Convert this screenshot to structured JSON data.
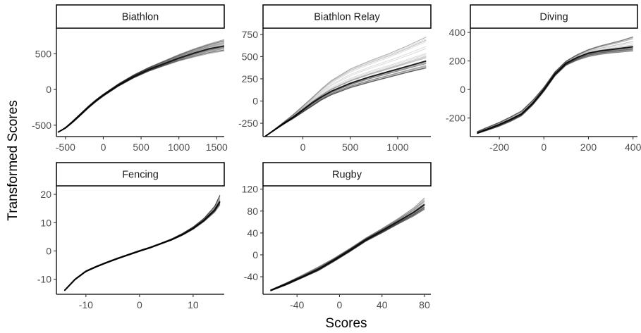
{
  "figure": {
    "xlabel": "Scores",
    "ylabel": "Transformed Scores",
    "line_color": "#000000",
    "panel_count": 5,
    "grid": false
  },
  "chart_data": [
    {
      "type": "line",
      "title": "Biathlon",
      "xlim": [
        -620,
        1600
      ],
      "ylim": [
        -660,
        860
      ],
      "xticks": [
        -500,
        0,
        500,
        1000,
        1500
      ],
      "xtick_labels": [
        "-500",
        "0",
        "500",
        "1000",
        "1500"
      ],
      "yticks": [
        -500,
        0,
        500
      ],
      "ytick_labels": [
        "-500",
        "0",
        "500"
      ],
      "x": [
        -600,
        -500,
        -400,
        -300,
        -200,
        -100,
        0,
        200,
        400,
        600,
        800,
        1000,
        1200,
        1400,
        1600
      ],
      "series": [
        {
          "values": [
            -600,
            -540,
            -450,
            -350,
            -250,
            -160,
            -80,
            60,
            180,
            280,
            360,
            440,
            510,
            570,
            610
          ]
        },
        {
          "values": [
            -600,
            -530,
            -435,
            -335,
            -235,
            -145,
            -65,
            80,
            205,
            310,
            400,
            490,
            570,
            640,
            700
          ]
        },
        {
          "values": [
            -600,
            -545,
            -460,
            -365,
            -265,
            -175,
            -95,
            45,
            160,
            255,
            330,
            400,
            455,
            505,
            540
          ]
        }
      ],
      "spread": 90
    },
    {
      "type": "line",
      "title": "Biathlon Relay",
      "xlim": [
        -420,
        1350
      ],
      "ylim": [
        -400,
        820
      ],
      "xticks": [
        0,
        500,
        1000
      ],
      "xtick_labels": [
        "0",
        "500",
        "1000"
      ],
      "yticks": [
        -250,
        0,
        250,
        500,
        750
      ],
      "ytick_labels": [
        "-250",
        "0",
        "250",
        "500",
        "750"
      ],
      "x": [
        -400,
        -300,
        -200,
        -100,
        0,
        100,
        200,
        300,
        500,
        700,
        900,
        1100,
        1300
      ],
      "series": [
        {
          "values": [
            -400,
            -325,
            -250,
            -180,
            -100,
            -20,
            50,
            110,
            200,
            270,
            330,
            390,
            450
          ]
        },
        {
          "values": [
            -400,
            -320,
            -235,
            -150,
            -55,
            40,
            140,
            230,
            360,
            450,
            530,
            620,
            720
          ]
        },
        {
          "values": [
            -400,
            -330,
            -260,
            -195,
            -125,
            -55,
            15,
            70,
            150,
            210,
            265,
            320,
            370
          ]
        }
      ],
      "spread": 140
    },
    {
      "type": "line",
      "title": "Diving",
      "xlim": [
        -330,
        420
      ],
      "ylim": [
        -330,
        430
      ],
      "xticks": [
        -200,
        0,
        200,
        400
      ],
      "xtick_labels": [
        "-200",
        "0",
        "200",
        "400"
      ],
      "yticks": [
        -200,
        0,
        200,
        400
      ],
      "ytick_labels": [
        "-200",
        "0",
        "200",
        "400"
      ],
      "x": [
        -300,
        -250,
        -200,
        -150,
        -100,
        -50,
        0,
        50,
        100,
        150,
        200,
        250,
        300,
        350,
        400
      ],
      "series": [
        {
          "values": [
            -305,
            -275,
            -245,
            -210,
            -170,
            -95,
            0,
            110,
            185,
            225,
            255,
            270,
            280,
            290,
            300
          ]
        },
        {
          "values": [
            -295,
            -262,
            -230,
            -192,
            -150,
            -75,
            15,
            125,
            200,
            245,
            280,
            305,
            325,
            345,
            370
          ]
        },
        {
          "values": [
            -310,
            -285,
            -258,
            -225,
            -185,
            -110,
            -15,
            95,
            170,
            205,
            230,
            245,
            255,
            262,
            270
          ]
        }
      ],
      "spread": 40
    },
    {
      "type": "line",
      "title": "Fencing",
      "xlim": [
        -15.5,
        15.8
      ],
      "ylim": [
        -15.3,
        23
      ],
      "xticks": [
        -10,
        0,
        10
      ],
      "xtick_labels": [
        "-10",
        "0",
        "10"
      ],
      "yticks": [
        -10,
        0,
        10,
        20
      ],
      "ytick_labels": [
        "-10",
        "0",
        "10",
        "20"
      ],
      "x": [
        -14,
        -12,
        -10,
        -8,
        -6,
        -4,
        -2,
        0,
        2,
        4,
        6,
        8,
        10,
        12,
        14,
        15
      ],
      "series": [
        {
          "values": [
            -14,
            -10,
            -7.2,
            -5.5,
            -4,
            -2.6,
            -1.3,
            0,
            1.2,
            2.6,
            4,
            5.8,
            8,
            10.8,
            14.5,
            17.5
          ]
        },
        {
          "values": [
            -13.8,
            -9.8,
            -7,
            -5.3,
            -3.8,
            -2.4,
            -1.1,
            0.2,
            1.4,
            2.8,
            4.3,
            6.2,
            8.5,
            11.5,
            15.8,
            19.8
          ]
        },
        {
          "values": [
            -14.1,
            -10.2,
            -7.4,
            -5.7,
            -4.2,
            -2.8,
            -1.5,
            -0.2,
            1,
            2.4,
            3.8,
            5.5,
            7.6,
            10.3,
            13.6,
            16.2
          ]
        }
      ],
      "spread": 1.2
    },
    {
      "type": "line",
      "title": "Rugby",
      "xlim": [
        -72,
        86
      ],
      "ylim": [
        -72,
        126
      ],
      "xticks": [
        -40,
        0,
        40,
        80
      ],
      "xtick_labels": [
        "-40",
        "0",
        "40",
        "80"
      ],
      "yticks": [
        -40,
        0,
        40,
        80,
        120
      ],
      "ytick_labels": [
        "-40",
        "0",
        "40",
        "80",
        "120"
      ],
      "x": [
        -65,
        -50,
        -35,
        -20,
        -5,
        0,
        10,
        25,
        40,
        55,
        70,
        80
      ],
      "series": [
        {
          "values": [
            -65,
            -53,
            -40,
            -26,
            -9,
            -3,
            9,
            28,
            44,
            61,
            78,
            92
          ]
        },
        {
          "values": [
            -64,
            -51,
            -37,
            -22,
            -6,
            0,
            12,
            31,
            48,
            66,
            86,
            104
          ]
        },
        {
          "values": [
            -66,
            -55,
            -42,
            -29,
            -12,
            -6,
            6,
            25,
            40,
            56,
            71,
            83
          ]
        }
      ],
      "spread": 6
    }
  ]
}
